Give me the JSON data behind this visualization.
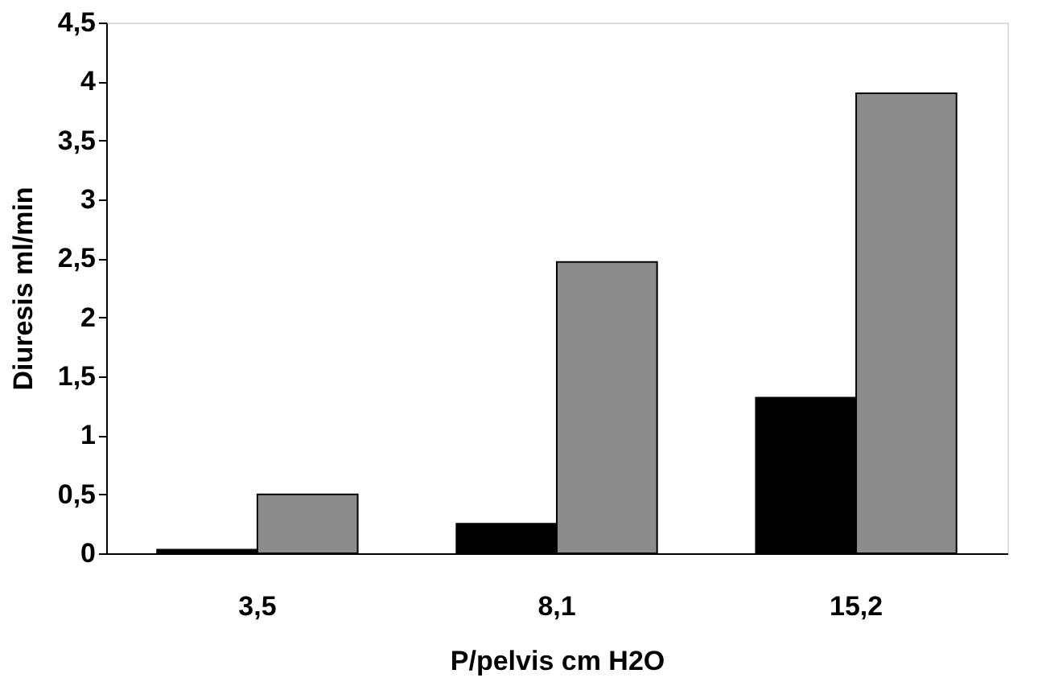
{
  "chart_data": {
    "type": "bar",
    "xlabel": "P/pelvis cm H2O",
    "ylabel": "Diuresis ml/min",
    "categories": [
      "3,5",
      "8,1",
      "15,2"
    ],
    "series": [
      {
        "color": "#000000",
        "values": [
          0.03,
          0.25,
          1.32
        ]
      },
      {
        "color": "#8c8c8c",
        "values": [
          0.5,
          2.47,
          3.9
        ]
      }
    ],
    "ylim": [
      0,
      4.5
    ],
    "yticks": [
      0,
      {
        "value": 0.5,
        "label": "0,5"
      },
      1,
      {
        "value": 1.5,
        "label": "1,5"
      },
      2,
      {
        "value": 2.5,
        "label": "2,5"
      },
      3,
      {
        "value": 3.5,
        "label": "3,5"
      },
      4,
      {
        "value": 4.5,
        "label": "4,5"
      }
    ],
    "grid": false
  }
}
